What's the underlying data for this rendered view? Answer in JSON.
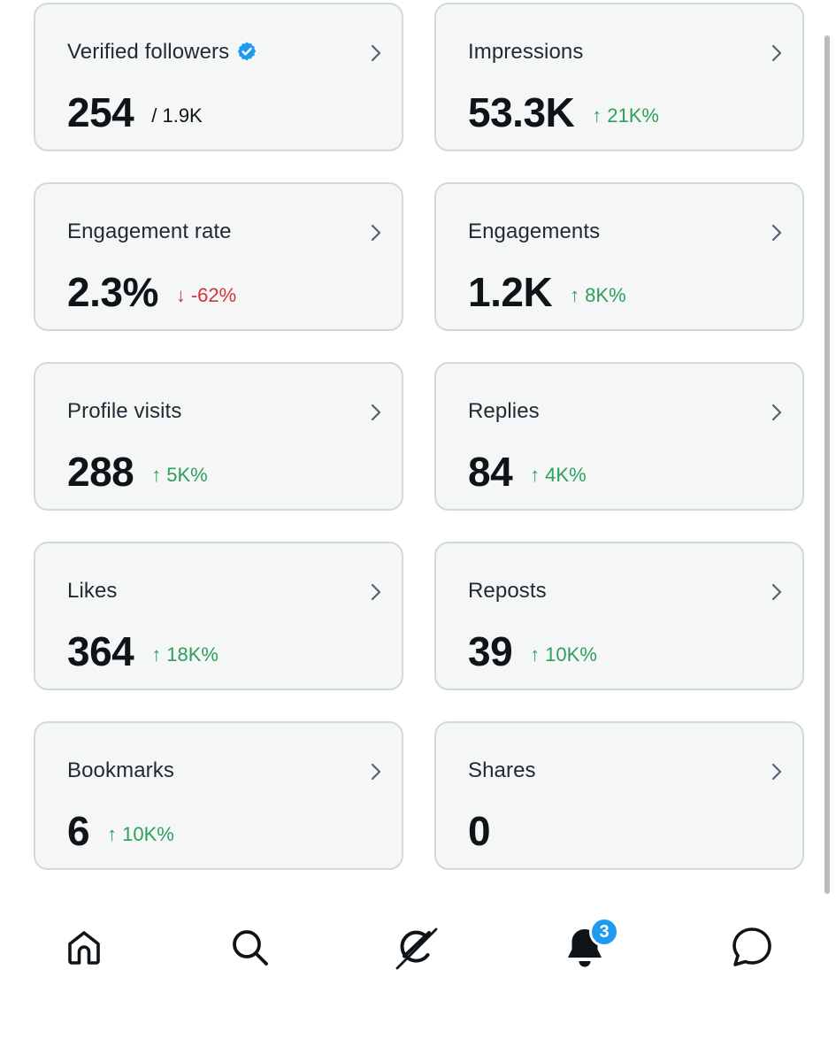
{
  "cards": [
    {
      "label": "Verified followers",
      "value": "254",
      "sub": "/ 1.9K",
      "delta": "",
      "direction": "",
      "verified": true
    },
    {
      "label": "Impressions",
      "value": "53.3K",
      "sub": "",
      "delta": "21K%",
      "direction": "up",
      "verified": false
    },
    {
      "label": "Engagement rate",
      "value": "2.3%",
      "sub": "",
      "delta": "-62%",
      "direction": "down",
      "verified": false
    },
    {
      "label": "Engagements",
      "value": "1.2K",
      "sub": "",
      "delta": "8K%",
      "direction": "up",
      "verified": false
    },
    {
      "label": "Profile visits",
      "value": "288",
      "sub": "",
      "delta": "5K%",
      "direction": "up",
      "verified": false
    },
    {
      "label": "Replies",
      "value": "84",
      "sub": "",
      "delta": "4K%",
      "direction": "up",
      "verified": false
    },
    {
      "label": "Likes",
      "value": "364",
      "sub": "",
      "delta": "18K%",
      "direction": "up",
      "verified": false
    },
    {
      "label": "Reposts",
      "value": "39",
      "sub": "",
      "delta": "10K%",
      "direction": "up",
      "verified": false
    },
    {
      "label": "Bookmarks",
      "value": "6",
      "sub": "",
      "delta": "10K%",
      "direction": "up",
      "verified": false
    },
    {
      "label": "Shares",
      "value": "0",
      "sub": "",
      "delta": "",
      "direction": "",
      "verified": false
    }
  ],
  "arrows": {
    "up": "↑",
    "down": "↓"
  },
  "colors": {
    "up": "#2e9f5e",
    "down": "#d0333c",
    "verified": "#1d9bf0",
    "badge": "#1d9bf0"
  },
  "tabbar": {
    "items": [
      {
        "icon": "home-icon"
      },
      {
        "icon": "search-icon"
      },
      {
        "icon": "grok-icon"
      },
      {
        "icon": "notifications-bell-icon",
        "badge": "3"
      },
      {
        "icon": "messages-icon"
      }
    ]
  }
}
